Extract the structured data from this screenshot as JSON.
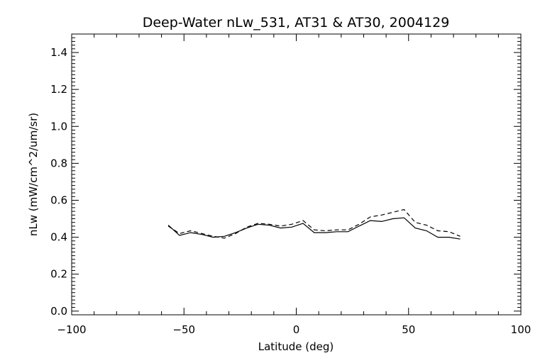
{
  "chart_data": {
    "type": "line",
    "title": "Deep-Water nLw_531, AT31 & AT30, 2004129",
    "xlabel": "Latitude (deg)",
    "ylabel": "nLw (mW/cm^2/um/sr)",
    "xlim": [
      -100,
      100
    ],
    "ylim": [
      -0.02,
      1.5
    ],
    "x_ticks": [
      -100,
      -50,
      0,
      50,
      100
    ],
    "x_tick_labels": [
      "−100",
      "−50",
      "0",
      "50",
      "100"
    ],
    "y_ticks": [
      0.0,
      0.2,
      0.4,
      0.6,
      0.8,
      1.0,
      1.2,
      1.4
    ],
    "y_tick_labels": [
      "0.0",
      "0.2",
      "0.4",
      "0.6",
      "0.8",
      "1.0",
      "1.2",
      "1.4"
    ],
    "grid": false,
    "colors": {
      "line": "#000000",
      "background": "#ffffff"
    },
    "series": [
      {
        "style": "solid",
        "x": [
          -57,
          -52,
          -47,
          -42,
          -37,
          -32,
          -27,
          -22,
          -17,
          -12,
          -7,
          -2,
          3,
          8,
          13,
          18,
          23,
          28,
          33,
          38,
          43,
          48,
          53,
          58,
          63,
          68,
          73
        ],
        "y": [
          0.465,
          0.41,
          0.425,
          0.415,
          0.4,
          0.405,
          0.425,
          0.45,
          0.47,
          0.465,
          0.45,
          0.455,
          0.475,
          0.425,
          0.425,
          0.43,
          0.43,
          0.46,
          0.49,
          0.485,
          0.5,
          0.505,
          0.45,
          0.435,
          0.4,
          0.4,
          0.39
        ]
      },
      {
        "style": "dashed",
        "x": [
          -57,
          -52,
          -47,
          -42,
          -37,
          -32,
          -27,
          -22,
          -17,
          -12,
          -7,
          -2,
          3,
          8,
          13,
          18,
          23,
          28,
          33,
          38,
          43,
          48,
          53,
          58,
          63,
          68,
          73
        ],
        "y": [
          0.46,
          0.42,
          0.435,
          0.42,
          0.405,
          0.395,
          0.42,
          0.455,
          0.475,
          0.47,
          0.46,
          0.47,
          0.49,
          0.44,
          0.435,
          0.44,
          0.44,
          0.47,
          0.51,
          0.52,
          0.535,
          0.55,
          0.48,
          0.465,
          0.435,
          0.43,
          0.405
        ]
      }
    ]
  }
}
